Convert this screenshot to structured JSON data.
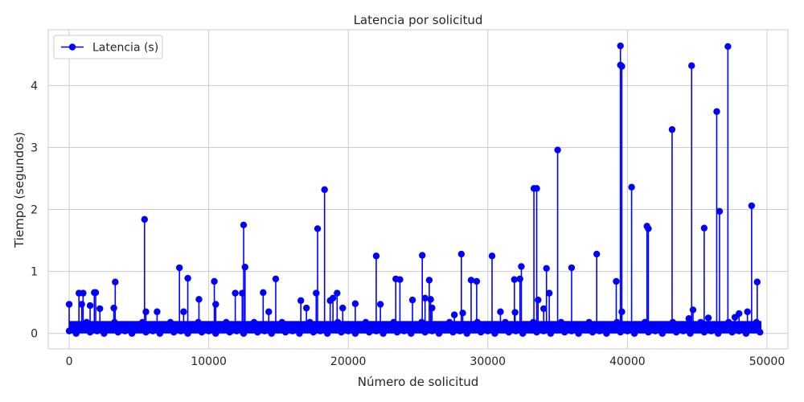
{
  "chart_data": {
    "type": "line",
    "title": "Latencia por solicitud",
    "xlabel": "Número de solicitud",
    "ylabel": "Tiempo (segundos)",
    "xlim": [
      -1500,
      51500
    ],
    "ylim": [
      -0.25,
      4.9
    ],
    "xticks": [
      0,
      10000,
      20000,
      30000,
      40000,
      50000
    ],
    "xtick_labels": [
      "0",
      "10000",
      "20000",
      "30000",
      "40000",
      "50000"
    ],
    "yticks": [
      0,
      1,
      2,
      3,
      4
    ],
    "ytick_labels": [
      "0",
      "1",
      "2",
      "3",
      "4"
    ],
    "grid": true,
    "legend_position": "top-left",
    "x_last": 49600,
    "baseline_band": [
      0.0,
      0.2
    ],
    "series": [
      {
        "name": "Latencia (s)",
        "color": "#0000ff",
        "marker": "circle",
        "spikes": [
          [
            0,
            0.47
          ],
          [
            700,
            0.65
          ],
          [
            900,
            0.47
          ],
          [
            1000,
            0.65
          ],
          [
            1500,
            0.45
          ],
          [
            1800,
            0.66
          ],
          [
            1900,
            0.66
          ],
          [
            2200,
            0.4
          ],
          [
            3200,
            0.41
          ],
          [
            3300,
            0.83
          ],
          [
            5400,
            1.84
          ],
          [
            5500,
            0.35
          ],
          [
            6300,
            0.35
          ],
          [
            7900,
            1.06
          ],
          [
            8200,
            0.35
          ],
          [
            8500,
            0.89
          ],
          [
            9300,
            0.55
          ],
          [
            10400,
            0.84
          ],
          [
            10500,
            0.47
          ],
          [
            11900,
            0.65
          ],
          [
            12400,
            0.65
          ],
          [
            12500,
            1.75
          ],
          [
            12600,
            1.07
          ],
          [
            13900,
            0.66
          ],
          [
            14300,
            0.35
          ],
          [
            14800,
            0.88
          ],
          [
            16600,
            0.53
          ],
          [
            17000,
            0.41
          ],
          [
            17700,
            0.65
          ],
          [
            17800,
            1.69
          ],
          [
            18300,
            2.32
          ],
          [
            18700,
            0.53
          ],
          [
            18900,
            0.57
          ],
          [
            19200,
            0.65
          ],
          [
            19600,
            0.41
          ],
          [
            20500,
            0.48
          ],
          [
            22000,
            1.25
          ],
          [
            22300,
            0.47
          ],
          [
            23400,
            0.88
          ],
          [
            23700,
            0.87
          ],
          [
            24600,
            0.54
          ],
          [
            25300,
            1.26
          ],
          [
            25500,
            0.57
          ],
          [
            25800,
            0.86
          ],
          [
            25900,
            0.55
          ],
          [
            26000,
            0.41
          ],
          [
            27600,
            0.3
          ],
          [
            28100,
            1.28
          ],
          [
            28200,
            0.33
          ],
          [
            28800,
            0.86
          ],
          [
            29200,
            0.84
          ],
          [
            30300,
            1.25
          ],
          [
            30900,
            0.35
          ],
          [
            31900,
            0.87
          ],
          [
            31950,
            0.34
          ],
          [
            32300,
            0.88
          ],
          [
            32400,
            1.08
          ],
          [
            33300,
            2.34
          ],
          [
            33500,
            2.34
          ],
          [
            33600,
            0.54
          ],
          [
            34000,
            0.4
          ],
          [
            34200,
            1.05
          ],
          [
            34400,
            0.65
          ],
          [
            35000,
            2.96
          ],
          [
            36000,
            1.06
          ],
          [
            37800,
            1.28
          ],
          [
            39200,
            0.84
          ],
          [
            39500,
            4.64
          ],
          [
            39500,
            4.33
          ],
          [
            39600,
            4.31
          ],
          [
            39600,
            0.35
          ],
          [
            40300,
            2.36
          ],
          [
            41400,
            1.73
          ],
          [
            41500,
            1.69
          ],
          [
            43200,
            3.29
          ],
          [
            44400,
            0.24
          ],
          [
            44600,
            4.32
          ],
          [
            44700,
            0.38
          ],
          [
            45500,
            1.7
          ],
          [
            45800,
            0.25
          ],
          [
            46400,
            3.58
          ],
          [
            46600,
            1.97
          ],
          [
            47200,
            4.63
          ],
          [
            47700,
            0.26
          ],
          [
            48000,
            0.32
          ],
          [
            48600,
            0.35
          ],
          [
            48900,
            2.06
          ],
          [
            49300,
            0.83
          ]
        ]
      }
    ]
  }
}
